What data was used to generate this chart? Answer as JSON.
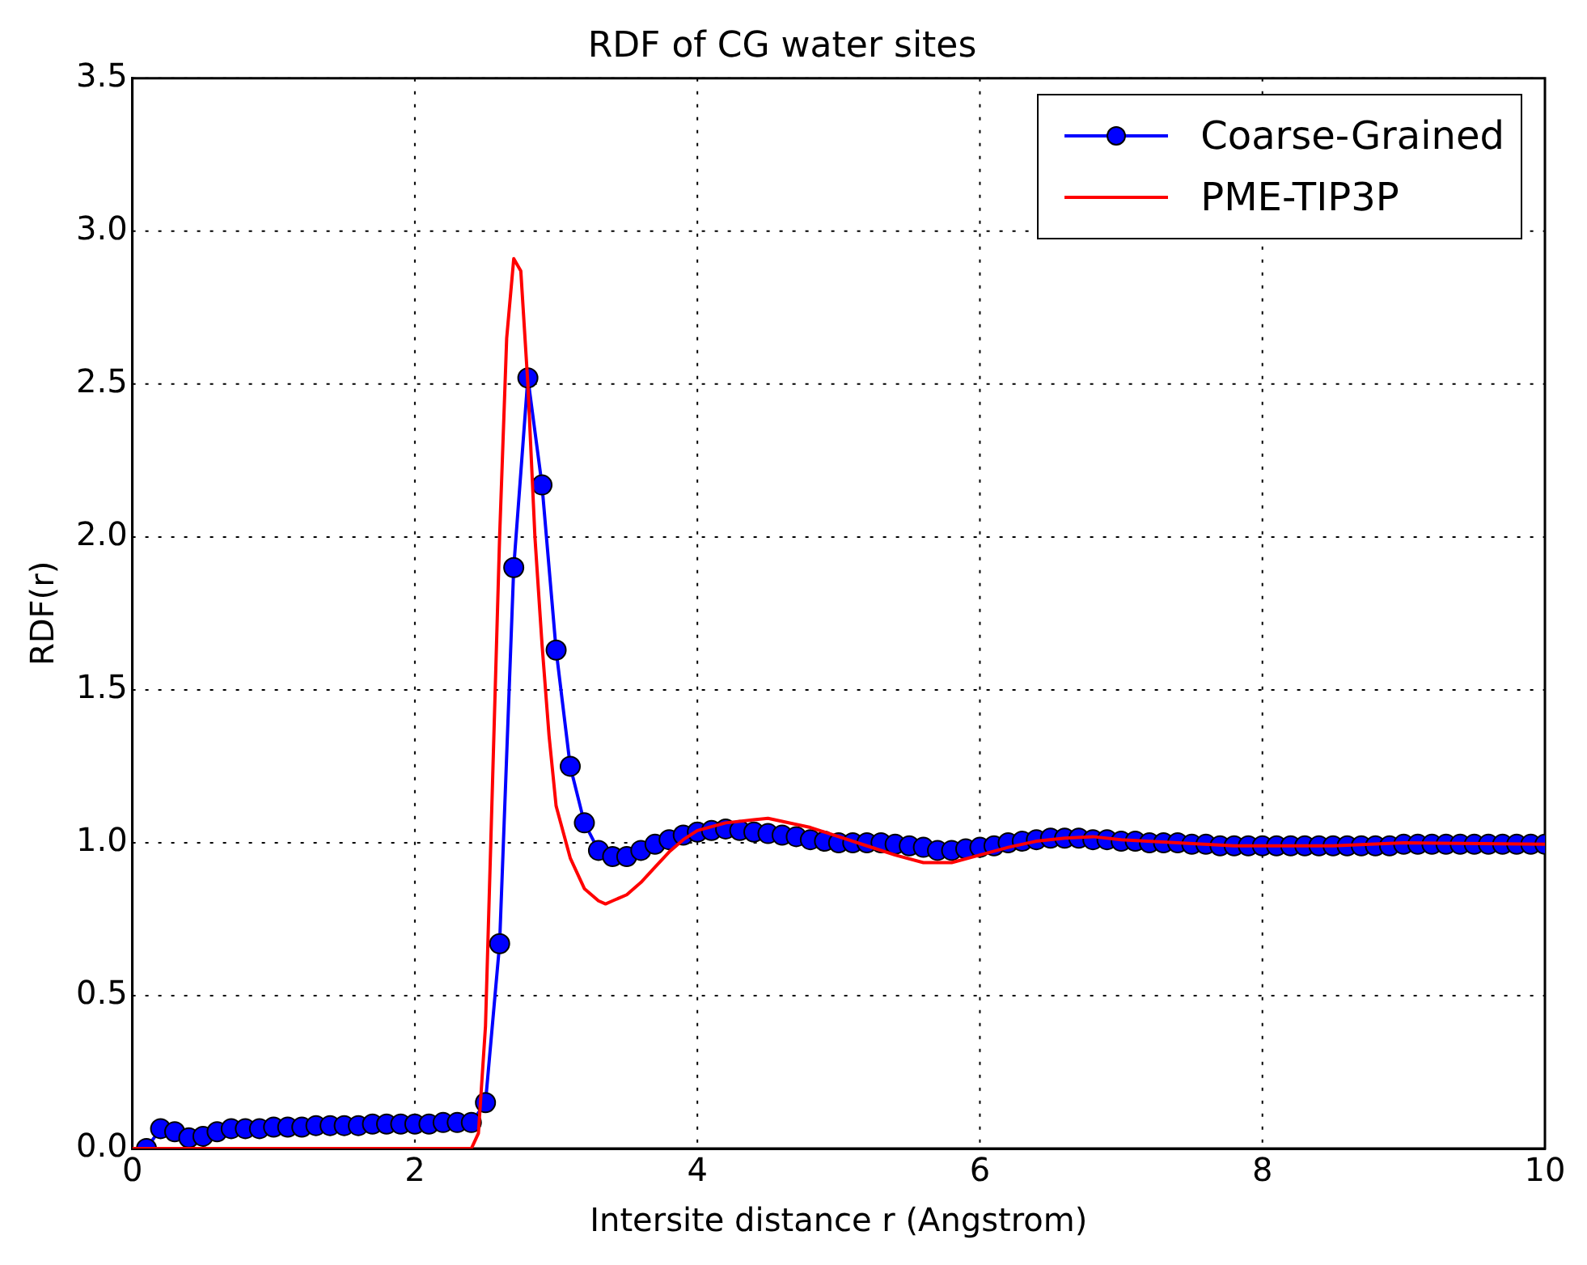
{
  "chart_data": {
    "type": "line",
    "title": "RDF of CG water sites",
    "xlabel": "Intersite distance r (Angstrom)",
    "ylabel": "RDF(r)",
    "xlim": [
      0,
      10
    ],
    "xticks": [
      0,
      2,
      4,
      6,
      8,
      10
    ],
    "ylim": [
      0,
      3.5
    ],
    "yticks": [
      {
        "value": 0,
        "label": "0.0"
      },
      {
        "value": 0.5,
        "label": "0.5"
      },
      {
        "value": 1,
        "label": "1.0"
      },
      {
        "value": 1.5,
        "label": "1.5"
      },
      {
        "value": 2,
        "label": "2.0"
      },
      {
        "value": 2.5,
        "label": "2.5"
      },
      {
        "value": 3,
        "label": "3.0"
      },
      {
        "value": 3.5,
        "label": "3.5"
      }
    ],
    "grid": true,
    "legend": "top right",
    "line_style": "solid",
    "series": [
      {
        "name": "Coarse-Grained",
        "color": "#0000ff",
        "marker": "circle",
        "x": [
          0.1,
          0.2,
          0.3,
          0.4,
          0.5,
          0.6,
          0.7,
          0.8,
          0.9,
          1.0,
          1.1,
          1.2,
          1.3,
          1.4,
          1.5,
          1.6,
          1.7,
          1.8,
          1.9,
          2.0,
          2.1,
          2.2,
          2.3,
          2.4,
          2.5,
          2.6,
          2.7,
          2.8,
          2.9,
          3.0,
          3.1,
          3.2,
          3.3,
          3.4,
          3.5,
          3.6,
          3.7,
          3.8,
          3.9,
          4.0,
          4.1,
          4.2,
          4.3,
          4.4,
          4.5,
          4.6,
          4.7,
          4.8,
          4.9,
          5.0,
          5.1,
          5.2,
          5.3,
          5.4,
          5.5,
          5.6,
          5.7,
          5.8,
          5.9,
          6.0,
          6.1,
          6.2,
          6.3,
          6.4,
          6.5,
          6.6,
          6.7,
          6.8,
          6.9,
          7.0,
          7.1,
          7.2,
          7.3,
          7.4,
          7.5,
          7.6,
          7.7,
          7.8,
          7.9,
          8.0,
          8.1,
          8.2,
          8.3,
          8.4,
          8.5,
          8.6,
          8.7,
          8.8,
          8.9,
          9.0,
          9.1,
          9.2,
          9.3,
          9.4,
          9.5,
          9.6,
          9.7,
          9.8,
          9.9,
          10.0
        ],
        "values": [
          0.0,
          0.065,
          0.055,
          0.035,
          0.04,
          0.055,
          0.065,
          0.065,
          0.065,
          0.07,
          0.07,
          0.07,
          0.075,
          0.075,
          0.075,
          0.075,
          0.08,
          0.08,
          0.08,
          0.08,
          0.08,
          0.085,
          0.085,
          0.085,
          0.15,
          0.67,
          1.9,
          2.52,
          2.17,
          1.63,
          1.25,
          1.065,
          0.975,
          0.955,
          0.955,
          0.975,
          0.995,
          1.01,
          1.025,
          1.035,
          1.04,
          1.045,
          1.04,
          1.035,
          1.03,
          1.025,
          1.02,
          1.01,
          1.005,
          1.0,
          1.0,
          1.0,
          1.0,
          0.995,
          0.99,
          0.985,
          0.975,
          0.975,
          0.98,
          0.985,
          0.99,
          1.0,
          1.005,
          1.01,
          1.015,
          1.015,
          1.015,
          1.01,
          1.01,
          1.005,
          1.005,
          1.0,
          1.0,
          1.0,
          0.995,
          0.995,
          0.99,
          0.99,
          0.99,
          0.99,
          0.99,
          0.99,
          0.99,
          0.99,
          0.99,
          0.99,
          0.99,
          0.99,
          0.99,
          0.995,
          0.995,
          0.995,
          0.995,
          0.995,
          0.995,
          0.995,
          0.995,
          0.995,
          0.995,
          0.995
        ]
      },
      {
        "name": "PME-TIP3P",
        "color": "#ff0000",
        "marker": "none",
        "x": [
          0,
          2.4,
          2.45,
          2.5,
          2.55,
          2.6,
          2.65,
          2.7,
          2.75,
          2.8,
          2.85,
          2.9,
          2.95,
          3.0,
          3.1,
          3.2,
          3.3,
          3.35,
          3.4,
          3.5,
          3.6,
          3.7,
          3.8,
          3.9,
          4.0,
          4.2,
          4.4,
          4.5,
          4.6,
          4.8,
          5.0,
          5.2,
          5.4,
          5.6,
          5.8,
          6.0,
          6.2,
          6.4,
          6.6,
          6.8,
          7.0,
          7.4,
          7.8,
          8.0,
          8.5,
          9.0,
          10.0
        ],
        "values": [
          0,
          0,
          0.05,
          0.4,
          1.2,
          2.0,
          2.65,
          2.91,
          2.87,
          2.5,
          2.0,
          1.65,
          1.35,
          1.12,
          0.95,
          0.85,
          0.81,
          0.8,
          0.81,
          0.83,
          0.87,
          0.92,
          0.97,
          1.01,
          1.04,
          1.065,
          1.075,
          1.08,
          1.07,
          1.05,
          1.02,
          0.99,
          0.96,
          0.935,
          0.935,
          0.96,
          0.985,
          1.005,
          1.015,
          1.02,
          1.01,
          1.0,
          0.99,
          0.99,
          0.99,
          1.0,
          0.995
        ]
      }
    ]
  }
}
